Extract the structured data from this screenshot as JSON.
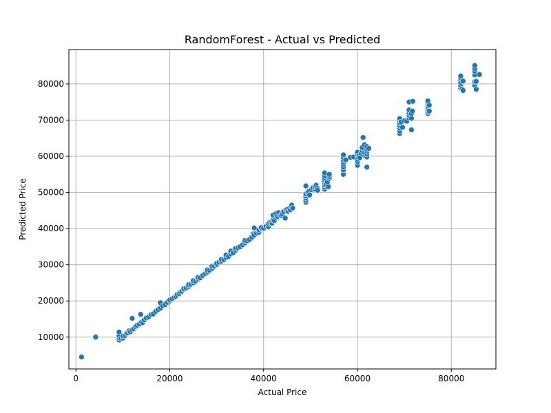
{
  "chart_data": {
    "type": "scatter",
    "title": "RandomForest - Actual vs Predicted",
    "xlabel": "Actual Price",
    "ylabel": "Predicted Price",
    "xlim": [
      -1500,
      89500
    ],
    "ylim": [
      1200,
      89500
    ],
    "xticks": [
      0,
      20000,
      40000,
      60000,
      80000
    ],
    "yticks": [
      10000,
      20000,
      30000,
      40000,
      50000,
      60000,
      70000,
      80000
    ],
    "grid": true,
    "point_color": "#1f77b4",
    "points": [
      [
        1200,
        4500
      ],
      [
        4200,
        10000
      ],
      [
        9200,
        9200
      ],
      [
        9200,
        9800
      ],
      [
        9200,
        10400
      ],
      [
        9200,
        11400
      ],
      [
        9600,
        9600
      ],
      [
        10000,
        9700
      ],
      [
        10000,
        10300
      ],
      [
        10500,
        10400
      ],
      [
        10800,
        11000
      ],
      [
        11000,
        11200
      ],
      [
        11300,
        11700
      ],
      [
        11600,
        11500
      ],
      [
        12000,
        12000
      ],
      [
        12000,
        15200
      ],
      [
        12300,
        12300
      ],
      [
        12700,
        12900
      ],
      [
        13000,
        13200
      ],
      [
        13500,
        13600
      ],
      [
        13800,
        16300
      ],
      [
        14000,
        14200
      ],
      [
        14200,
        14000
      ],
      [
        14600,
        14800
      ],
      [
        15000,
        15300
      ],
      [
        15500,
        15600
      ],
      [
        16000,
        16200
      ],
      [
        16500,
        16400
      ],
      [
        17000,
        17100
      ],
      [
        17500,
        17600
      ],
      [
        18000,
        18000
      ],
      [
        18000,
        19500
      ],
      [
        18500,
        18700
      ],
      [
        19000,
        19000
      ],
      [
        19500,
        19600
      ],
      [
        20000,
        20000
      ],
      [
        20000,
        20300
      ],
      [
        20500,
        20600
      ],
      [
        21000,
        21000
      ],
      [
        21300,
        21300
      ],
      [
        21600,
        21800
      ],
      [
        22000,
        22000
      ],
      [
        22300,
        22500
      ],
      [
        22600,
        22700
      ],
      [
        23000,
        23200
      ],
      [
        23000,
        23400
      ],
      [
        23500,
        23600
      ],
      [
        24000,
        24000
      ],
      [
        24000,
        24500
      ],
      [
        24500,
        24600
      ],
      [
        25000,
        25000
      ],
      [
        25000,
        25600
      ],
      [
        25500,
        25500
      ],
      [
        26000,
        26000
      ],
      [
        26000,
        26500
      ],
      [
        26500,
        26400
      ],
      [
        27000,
        27000
      ],
      [
        27500,
        27500
      ],
      [
        28000,
        28000
      ],
      [
        28000,
        28600
      ],
      [
        28500,
        28500
      ],
      [
        29000,
        29000
      ],
      [
        29000,
        29600
      ],
      [
        29500,
        29600
      ],
      [
        30000,
        30000
      ],
      [
        30000,
        30400
      ],
      [
        30500,
        30700
      ],
      [
        31000,
        31000
      ],
      [
        31000,
        31500
      ],
      [
        31500,
        31400
      ],
      [
        32000,
        32000
      ],
      [
        32000,
        32700
      ],
      [
        32500,
        32300
      ],
      [
        33000,
        33000
      ],
      [
        33000,
        33800
      ],
      [
        33500,
        33300
      ],
      [
        34000,
        34000
      ],
      [
        34000,
        34500
      ],
      [
        34500,
        34700
      ],
      [
        35000,
        35000
      ],
      [
        35500,
        35500
      ],
      [
        36000,
        36000
      ],
      [
        36000,
        36700
      ],
      [
        36500,
        36600
      ],
      [
        37000,
        37000
      ],
      [
        37500,
        37600
      ],
      [
        37800,
        38500
      ],
      [
        38000,
        38200
      ],
      [
        38000,
        40200
      ],
      [
        38500,
        38700
      ],
      [
        39000,
        39000
      ],
      [
        39000,
        39700
      ],
      [
        39500,
        40000
      ],
      [
        39500,
        40300
      ],
      [
        40000,
        40100
      ],
      [
        40500,
        40600
      ],
      [
        41000,
        40500
      ],
      [
        41000,
        41300
      ],
      [
        41300,
        41700
      ],
      [
        41600,
        41800
      ],
      [
        41800,
        41500
      ],
      [
        42000,
        42300
      ],
      [
        42000,
        43700
      ],
      [
        42300,
        42200
      ],
      [
        42600,
        44100
      ],
      [
        42800,
        43000
      ],
      [
        43000,
        43300
      ],
      [
        43200,
        44400
      ],
      [
        43500,
        43700
      ],
      [
        43800,
        43600
      ],
      [
        44000,
        44000
      ],
      [
        44300,
        44700
      ],
      [
        44600,
        42900
      ],
      [
        44800,
        45200
      ],
      [
        45000,
        45300
      ],
      [
        45200,
        44800
      ],
      [
        45500,
        45600
      ],
      [
        45700,
        45200
      ],
      [
        46000,
        46000
      ],
      [
        46000,
        46500
      ],
      [
        46200,
        45700
      ],
      [
        49000,
        47300
      ],
      [
        49000,
        47900
      ],
      [
        49000,
        48500
      ],
      [
        49000,
        49000
      ],
      [
        49000,
        49600
      ],
      [
        49000,
        51800
      ],
      [
        49400,
        50000
      ],
      [
        49600,
        50300
      ],
      [
        49800,
        49300
      ],
      [
        50200,
        50800
      ],
      [
        50500,
        51300
      ],
      [
        51000,
        50900
      ],
      [
        51000,
        51600
      ],
      [
        51200,
        52000
      ],
      [
        51400,
        51200
      ],
      [
        51500,
        50600
      ],
      [
        53000,
        50900
      ],
      [
        53000,
        51500
      ],
      [
        53000,
        52100
      ],
      [
        53000,
        52700
      ],
      [
        53000,
        53300
      ],
      [
        53000,
        53900
      ],
      [
        53000,
        54600
      ],
      [
        53000,
        55400
      ],
      [
        53300,
        52300
      ],
      [
        53600,
        52900
      ],
      [
        53800,
        51600
      ],
      [
        54000,
        53900
      ],
      [
        54000,
        54400
      ],
      [
        54000,
        55000
      ],
      [
        57000,
        55000
      ],
      [
        57000,
        56200
      ],
      [
        57000,
        57000
      ],
      [
        57000,
        57700
      ],
      [
        57000,
        58300
      ],
      [
        57000,
        58900
      ],
      [
        57000,
        59600
      ],
      [
        57000,
        60400
      ],
      [
        57500,
        59000
      ],
      [
        58500,
        59700
      ],
      [
        59200,
        59800
      ],
      [
        60000,
        57500
      ],
      [
        60000,
        58500
      ],
      [
        60000,
        59200
      ],
      [
        60000,
        59900
      ],
      [
        60000,
        60500
      ],
      [
        60000,
        61100
      ],
      [
        60300,
        60200
      ],
      [
        60500,
        59600
      ],
      [
        60800,
        60800
      ],
      [
        61000,
        61600
      ],
      [
        61000,
        62400
      ],
      [
        61200,
        65200
      ],
      [
        61500,
        60300
      ],
      [
        61500,
        61000
      ],
      [
        61500,
        63200
      ],
      [
        62000,
        57000
      ],
      [
        62000,
        59800
      ],
      [
        62000,
        60600
      ],
      [
        62000,
        61300
      ],
      [
        62000,
        61900
      ],
      [
        62000,
        62700
      ],
      [
        62400,
        62200
      ],
      [
        69000,
        66300
      ],
      [
        69000,
        67000
      ],
      [
        69000,
        67800
      ],
      [
        69000,
        68500
      ],
      [
        69000,
        69200
      ],
      [
        69000,
        69900
      ],
      [
        69000,
        70400
      ],
      [
        69300,
        69500
      ],
      [
        69600,
        68000
      ],
      [
        70000,
        69800
      ],
      [
        70500,
        69700
      ],
      [
        71000,
        70600
      ],
      [
        71000,
        71300
      ],
      [
        71000,
        72000
      ],
      [
        71000,
        72800
      ],
      [
        71000,
        75000
      ],
      [
        71500,
        67300
      ],
      [
        71500,
        70500
      ],
      [
        71500,
        71800
      ],
      [
        71700,
        72500
      ],
      [
        71800,
        75200
      ],
      [
        75000,
        71800
      ],
      [
        75000,
        72300
      ],
      [
        75000,
        72800
      ],
      [
        75000,
        73300
      ],
      [
        75000,
        73900
      ],
      [
        75000,
        74400
      ],
      [
        75000,
        74900
      ],
      [
        75000,
        75300
      ],
      [
        75300,
        72500
      ],
      [
        75300,
        74100
      ],
      [
        82000,
        78800
      ],
      [
        82000,
        79600
      ],
      [
        82000,
        80400
      ],
      [
        82000,
        81200
      ],
      [
        82000,
        81700
      ],
      [
        82000,
        82200
      ],
      [
        82300,
        78600
      ],
      [
        82500,
        78200
      ],
      [
        82500,
        80800
      ],
      [
        85000,
        79600
      ],
      [
        85000,
        80600
      ],
      [
        85000,
        82500
      ],
      [
        85000,
        83500
      ],
      [
        85000,
        84300
      ],
      [
        85000,
        85100
      ],
      [
        85300,
        78500
      ],
      [
        85300,
        80700
      ],
      [
        86000,
        82600
      ]
    ]
  }
}
